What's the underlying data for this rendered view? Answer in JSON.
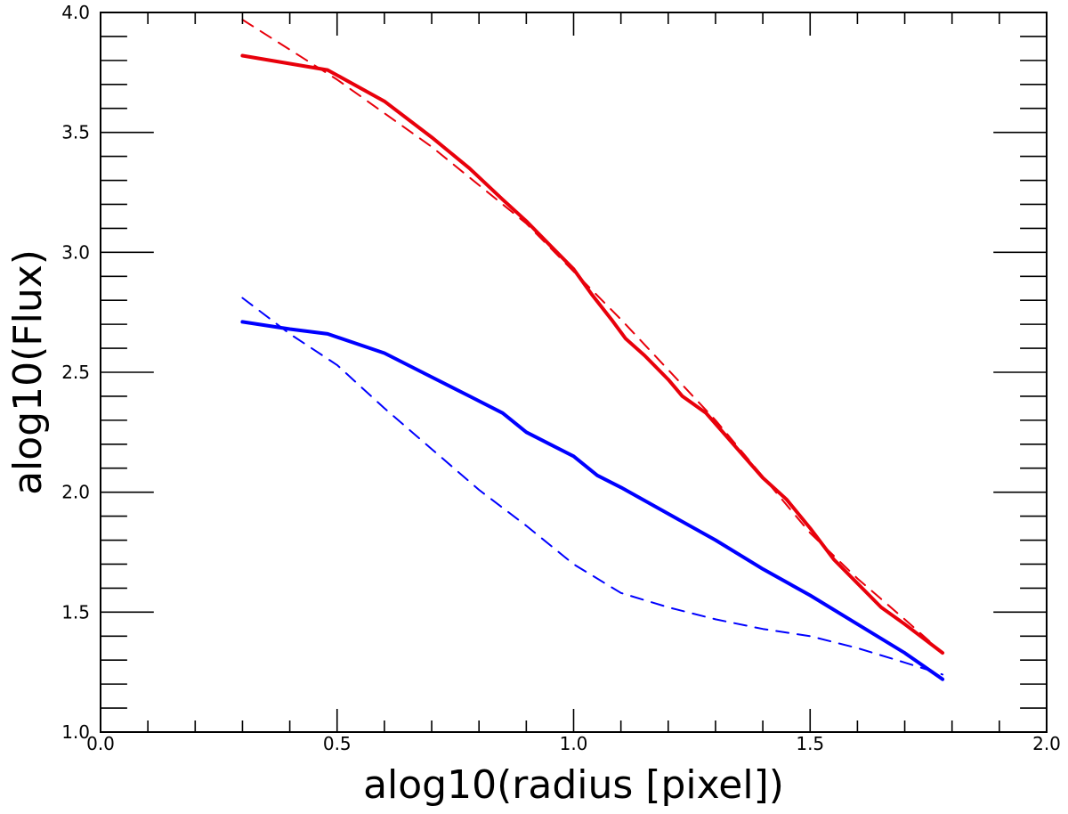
{
  "chart_data": {
    "type": "line",
    "title": "",
    "xlabel": "alog10(radius [pixel])",
    "ylabel": "alog10(Flux)",
    "xlim": [
      0.0,
      2.0
    ],
    "ylim": [
      1.0,
      4.0
    ],
    "x_major_ticks": [
      0.0,
      0.5,
      1.0,
      1.5,
      2.0
    ],
    "x_tick_labels": [
      "0.0",
      "0.5",
      "1.0",
      "1.5",
      "2.0"
    ],
    "x_minor_step": 0.1,
    "y_major_ticks": [
      1.0,
      1.5,
      2.0,
      2.5,
      3.0,
      3.5,
      4.0
    ],
    "y_tick_labels": [
      "1.0",
      "1.5",
      "2.0",
      "2.5",
      "3.0",
      "3.5",
      "4.0"
    ],
    "y_minor_step": 0.1,
    "grid": false,
    "legend": "none",
    "series": [
      {
        "color": "#e8000b",
        "style": "solid",
        "x": [
          0.3,
          0.48,
          0.6,
          0.7,
          0.78,
          0.85,
          0.9,
          0.95,
          1.0,
          1.04,
          1.08,
          1.11,
          1.15,
          1.2,
          1.23,
          1.28,
          1.32,
          1.36,
          1.4,
          1.45,
          1.5,
          1.55,
          1.6,
          1.65,
          1.7,
          1.78
        ],
        "y": [
          3.82,
          3.76,
          3.63,
          3.48,
          3.35,
          3.22,
          3.13,
          3.03,
          2.93,
          2.82,
          2.72,
          2.64,
          2.57,
          2.47,
          2.4,
          2.33,
          2.24,
          2.15,
          2.06,
          1.97,
          1.85,
          1.72,
          1.62,
          1.52,
          1.45,
          1.33
        ]
      },
      {
        "color": "#e8000b",
        "style": "dashed",
        "x": [
          0.3,
          0.5,
          0.7,
          0.9,
          1.1,
          1.3,
          1.5,
          1.6,
          1.7,
          1.78
        ],
        "y": [
          3.97,
          3.72,
          3.44,
          3.12,
          2.72,
          2.3,
          1.83,
          1.64,
          1.47,
          1.33
        ]
      },
      {
        "color": "#0000ff",
        "style": "solid",
        "x": [
          0.3,
          0.4,
          0.48,
          0.6,
          0.7,
          0.78,
          0.85,
          0.9,
          0.95,
          1.0,
          1.05,
          1.1,
          1.2,
          1.3,
          1.4,
          1.5,
          1.6,
          1.7,
          1.78
        ],
        "y": [
          2.71,
          2.68,
          2.66,
          2.58,
          2.48,
          2.4,
          2.33,
          2.25,
          2.2,
          2.15,
          2.07,
          2.02,
          1.91,
          1.8,
          1.68,
          1.57,
          1.45,
          1.33,
          1.22
        ]
      },
      {
        "color": "#0000ff",
        "style": "dashed",
        "x": [
          0.3,
          0.4,
          0.5,
          0.6,
          0.7,
          0.8,
          0.9,
          1.0,
          1.1,
          1.2,
          1.3,
          1.4,
          1.5,
          1.6,
          1.7,
          1.78
        ],
        "y": [
          2.81,
          2.66,
          2.53,
          2.35,
          2.18,
          2.01,
          1.86,
          1.7,
          1.58,
          1.52,
          1.47,
          1.43,
          1.4,
          1.35,
          1.29,
          1.24
        ]
      }
    ]
  }
}
